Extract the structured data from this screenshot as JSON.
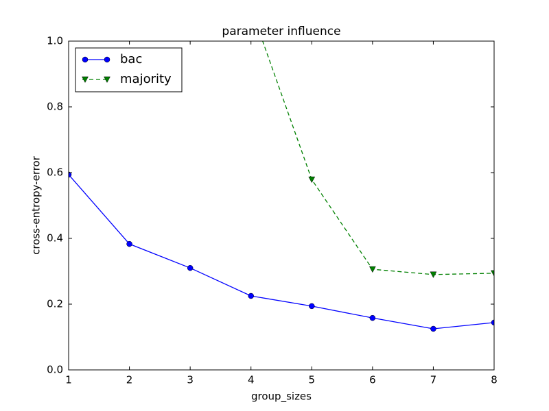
{
  "chart_data": {
    "type": "line",
    "title": "parameter influence",
    "xlabel": "group_sizes",
    "ylabel": "cross-entropy-error",
    "x": [
      1,
      2,
      3,
      4,
      5,
      6,
      7,
      8
    ],
    "series": [
      {
        "name": "bac",
        "color": "#0000ff",
        "marker": "circle",
        "dash": "solid",
        "values": [
          0.594,
          0.383,
          0.31,
          0.225,
          0.194,
          0.158,
          0.125,
          0.144
        ]
      },
      {
        "name": "majority",
        "color": "#008000",
        "marker": "triangle-down",
        "dash": "dashed",
        "values": [
          null,
          null,
          null,
          1.1,
          0.579,
          0.306,
          0.29,
          0.294
        ]
      }
    ],
    "xlim": [
      1,
      8
    ],
    "xticks": [
      1,
      2,
      3,
      4,
      5,
      6,
      7,
      8
    ],
    "ylim": [
      0,
      1
    ],
    "yticks": [
      {
        "value": 0,
        "label": "0.0"
      },
      0.2,
      0.4,
      0.6,
      0.8,
      {
        "value": 1,
        "label": "1.0"
      }
    ],
    "grid": false,
    "legend": "upper-left"
  }
}
